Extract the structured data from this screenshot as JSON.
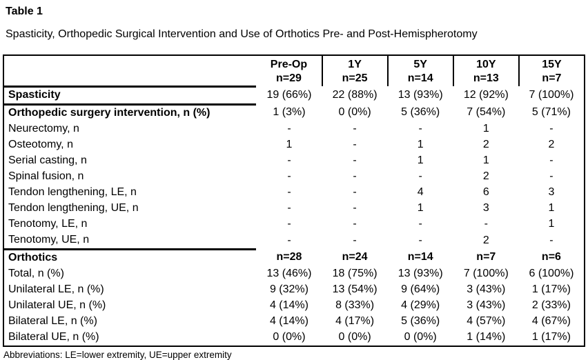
{
  "title": "Table 1",
  "caption": "Spasticity, Orthopedic Surgical Intervention and Use of Orthotics Pre- and Post-Hemispherotomy",
  "footnote": "Abbreviations: LE=lower extremity, UE=upper extremity",
  "colors": {
    "text": "#000000",
    "border": "#000000",
    "background": "#ffffff"
  },
  "table": {
    "header": {
      "label": "",
      "columns": [
        {
          "period": "Pre-Op",
          "n": "n=29"
        },
        {
          "period": "1Y",
          "n": "n=25"
        },
        {
          "period": "5Y",
          "n": "n=14"
        },
        {
          "period": "10Y",
          "n": "n=13"
        },
        {
          "period": "15Y",
          "n": "n=7"
        }
      ]
    },
    "rows": [
      {
        "label": "Spasticity",
        "bold_label": true,
        "rule_below": true,
        "values": [
          "19 (66%)",
          "22 (88%)",
          "13 (93%)",
          "12 (92%)",
          "7 (100%)"
        ]
      },
      {
        "label": "Orthopedic surgery intervention, n (%)",
        "bold_label": true,
        "values": [
          "1 (3%)",
          "0 (0%)",
          "5 (36%)",
          "7 (54%)",
          "5 (71%)"
        ]
      },
      {
        "label": "Neurectomy, n",
        "values": [
          "-",
          "-",
          "-",
          "1",
          "-"
        ]
      },
      {
        "label": "Osteotomy, n",
        "values": [
          "1",
          "-",
          "1",
          "2",
          "2"
        ]
      },
      {
        "label": "Serial casting, n",
        "values": [
          "-",
          "-",
          "1",
          "1",
          "-"
        ]
      },
      {
        "label": "Spinal fusion, n",
        "values": [
          "-",
          "-",
          "-",
          "2",
          "-"
        ]
      },
      {
        "label": "Tendon lengthening, LE, n",
        "values": [
          "-",
          "-",
          "4",
          "6",
          "3"
        ]
      },
      {
        "label": "Tendon lengthening, UE, n",
        "values": [
          "-",
          "-",
          "1",
          "3",
          "1"
        ]
      },
      {
        "label": "Tenotomy, LE, n",
        "values": [
          "-",
          "-",
          "-",
          "-",
          "1"
        ]
      },
      {
        "label": "Tenotomy, UE, n",
        "rule_below": true,
        "values": [
          "-",
          "-",
          "-",
          "2",
          "-"
        ]
      },
      {
        "label": "Orthotics",
        "bold_label": true,
        "bold_values": true,
        "values": [
          "n=28",
          "n=24",
          "n=14",
          "n=7",
          "n=6"
        ]
      },
      {
        "label": "Total, n (%)",
        "values": [
          "13 (46%)",
          "18 (75%)",
          "13 (93%)",
          "7 (100%)",
          "6 (100%)"
        ]
      },
      {
        "label": "Unilateral LE, n (%)",
        "values": [
          "9 (32%)",
          "13 (54%)",
          "9 (64%)",
          "3 (43%)",
          "1 (17%)"
        ]
      },
      {
        "label": "Unilateral UE, n (%)",
        "values": [
          "4 (14%)",
          "8 (33%)",
          "4 (29%)",
          "3 (43%)",
          "2 (33%)"
        ]
      },
      {
        "label": "Bilateral LE, n (%)",
        "values": [
          "4 (14%)",
          "4 (17%)",
          "5 (36%)",
          "4 (57%)",
          "4 (67%)"
        ]
      },
      {
        "label": "Bilateral UE, n (%)",
        "values": [
          "0 (0%)",
          "0 (0%)",
          "0 (0%)",
          "1 (14%)",
          "1 (17%)"
        ]
      }
    ]
  }
}
